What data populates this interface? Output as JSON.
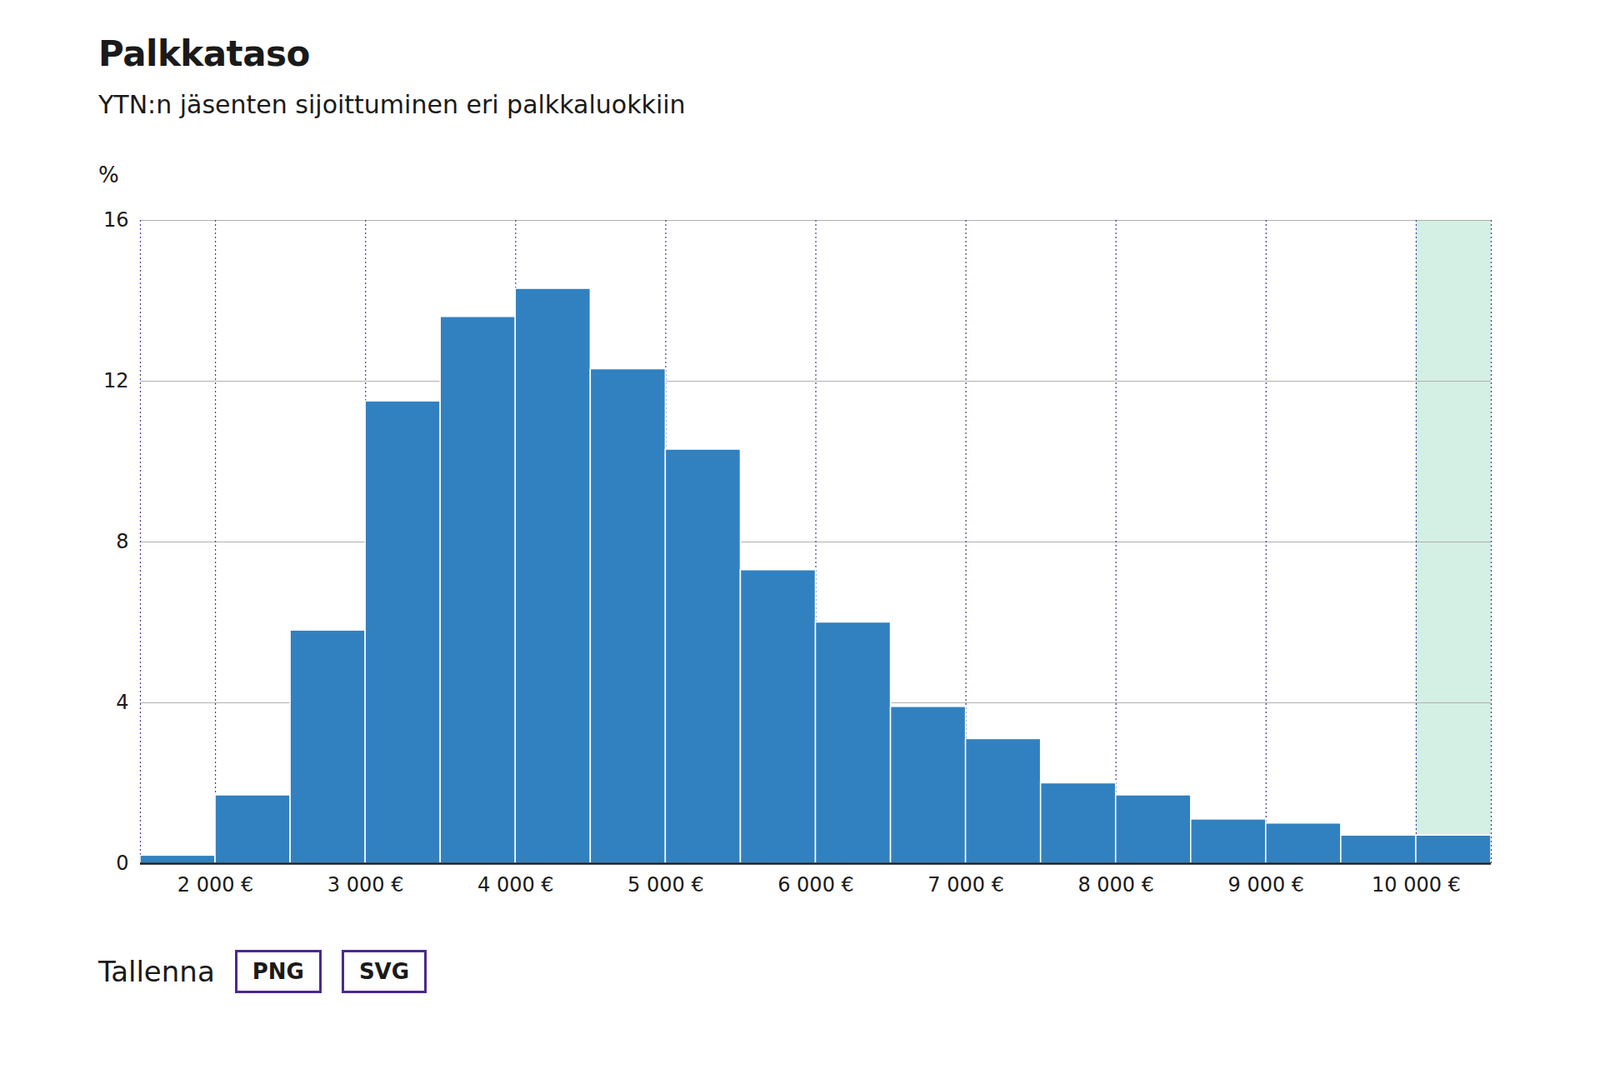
{
  "chart_data": {
    "type": "histogram",
    "title": "Palkkataso",
    "subtitle": "YTN:n jäsenten sijoittuminen eri palkkaluokkiin",
    "y_label": "%",
    "bins": [
      1500,
      2000,
      2500,
      3000,
      3500,
      4000,
      4500,
      5000,
      5500,
      6000,
      6500,
      7000,
      7500,
      8000,
      8500,
      9000,
      9500,
      10000,
      10500
    ],
    "values": [
      0.2,
      1.7,
      5.8,
      11.5,
      13.6,
      14.3,
      12.3,
      10.3,
      7.3,
      6.0,
      3.9,
      3.1,
      2.0,
      1.7,
      1.1,
      1.0,
      0.7,
      0.7
    ],
    "color": "#3181c0",
    "highlight_range": [
      10000,
      10500
    ],
    "xlim": [
      1500,
      10500
    ],
    "xticks": [
      {
        "value": 2000,
        "label": "2 000 €"
      },
      {
        "value": 3000,
        "label": "3 000 €"
      },
      {
        "value": 4000,
        "label": "4 000 €"
      },
      {
        "value": 5000,
        "label": "5 000 €"
      },
      {
        "value": 6000,
        "label": "6 000 €"
      },
      {
        "value": 7000,
        "label": "7 000 €"
      },
      {
        "value": 8000,
        "label": "8 000 €"
      },
      {
        "value": 9000,
        "label": "9 000 €"
      },
      {
        "value": 10000,
        "label": "10 000 €"
      }
    ],
    "ylim": [
      0,
      16
    ],
    "yticks": [
      0,
      4,
      8,
      12,
      16
    ],
    "grid": true
  },
  "footer": {
    "label": "Tallenna",
    "buttons": [
      "PNG",
      "SVG"
    ]
  }
}
